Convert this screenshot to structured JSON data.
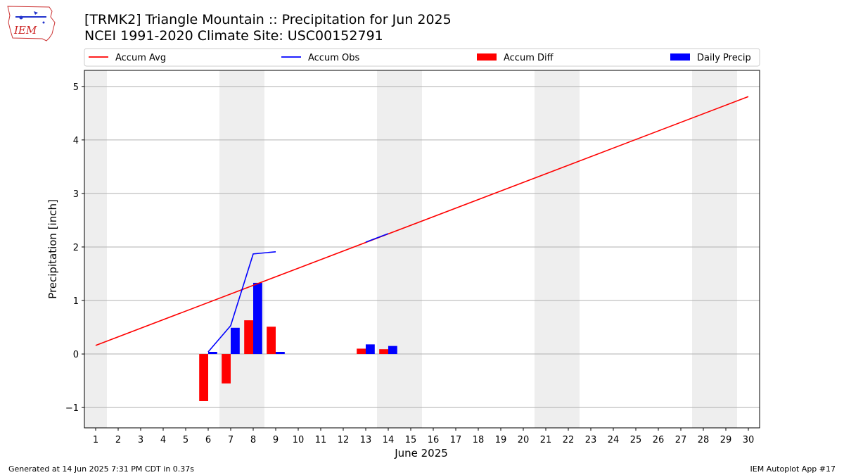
{
  "header": {
    "logo_text": "IEM",
    "title_line1": "[TRMK2] Triangle Mountain :: Precipitation for Jun 2025",
    "title_line2": "NCEI 1991-2020 Climate Site: USC00152791"
  },
  "footer": {
    "generated": "Generated at 14 Jun 2025 7:31 PM CDT in 0.37s",
    "app": "IEM Autoplot App #17"
  },
  "colors": {
    "accum_avg": "#ff0000",
    "accum_obs": "#0000ff",
    "accum_diff": "#ff0000",
    "daily_precip": "#0000ff",
    "weekend_shade": "#eeeeee",
    "grid": "#b0b0b0"
  },
  "chart_data": {
    "type": "bar",
    "xlabel": "June 2025",
    "ylabel": "Precipitation [inch]",
    "xlim": [
      0.5,
      30.5
    ],
    "ylim": [
      -1.38,
      5.3
    ],
    "x_ticks": [
      1,
      2,
      3,
      4,
      5,
      6,
      7,
      8,
      9,
      10,
      11,
      12,
      13,
      14,
      15,
      16,
      17,
      18,
      19,
      20,
      21,
      22,
      23,
      24,
      25,
      26,
      27,
      28,
      29,
      30
    ],
    "y_ticks": [
      -1,
      0,
      1,
      2,
      3,
      4,
      5
    ],
    "y_tick_labels": [
      "−1",
      "0",
      "1",
      "2",
      "3",
      "4",
      "5"
    ],
    "grid": "horizontal",
    "legend_position": "top, above plot",
    "legend": [
      {
        "label": "Accum Avg",
        "kind": "line",
        "color": "#ff0000"
      },
      {
        "label": "Accum Obs",
        "kind": "line",
        "color": "#0000ff"
      },
      {
        "label": "Accum Diff",
        "kind": "bar",
        "color": "#ff0000"
      },
      {
        "label": "Daily Precip",
        "kind": "bar",
        "color": "#0000ff"
      }
    ],
    "weekends": [
      1,
      7,
      8,
      14,
      15,
      21,
      22,
      28,
      29
    ],
    "series": [
      {
        "name": "Accum Avg",
        "kind": "line",
        "x": [
          1,
          30
        ],
        "values": [
          0.16,
          4.81
        ]
      },
      {
        "name": "Accum Obs",
        "kind": "line",
        "segments": [
          {
            "x": [
              6,
              7,
              8,
              9
            ],
            "values": [
              0.04,
              0.53,
              1.87,
              1.91
            ]
          },
          {
            "x": [
              13,
              14
            ],
            "values": [
              2.09,
              2.25
            ]
          }
        ]
      },
      {
        "name": "Accum Diff",
        "kind": "bar",
        "x": [
          6,
          7,
          8,
          9,
          13,
          14
        ],
        "values": [
          -0.88,
          -0.55,
          0.63,
          0.51,
          0.1,
          0.09
        ]
      },
      {
        "name": "Daily Precip",
        "kind": "bar",
        "x": [
          6,
          7,
          8,
          9,
          13,
          14
        ],
        "values": [
          0.04,
          0.49,
          1.33,
          0.04,
          0.18,
          0.15
        ]
      }
    ]
  }
}
